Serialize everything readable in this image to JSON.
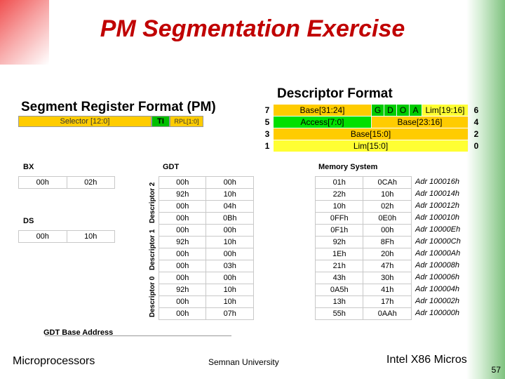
{
  "title": "PM Segmentation Exercise",
  "segment_register": {
    "heading": "Segment Register Format (PM)",
    "fields": [
      {
        "label": "Selector [12:0]",
        "color": "#ffcc00"
      },
      {
        "label": "TI",
        "color": "#00c000"
      },
      {
        "label": "RPL[1:0]",
        "color": "#ffcc00"
      }
    ]
  },
  "descriptor_format": {
    "heading": "Descriptor Format",
    "rows": [
      {
        "left": "7",
        "right": "6",
        "cells": [
          {
            "label": "Base[31:24]",
            "color": "#ffcc00"
          },
          {
            "label": "G",
            "color": "#00cc00"
          },
          {
            "label": "D",
            "color": "#00cc00"
          },
          {
            "label": "O",
            "color": "#00cc00"
          },
          {
            "label": "A",
            "color": "#00cc00"
          },
          {
            "label": "Lim[19:16]",
            "color": "#ffff33"
          }
        ]
      },
      {
        "left": "5",
        "right": "4",
        "cells": [
          {
            "label": "Access[7:0]",
            "color": "#00e000"
          },
          {
            "label": "Base[23:16]",
            "color": "#ffcc00"
          }
        ]
      },
      {
        "left": "3",
        "right": "2",
        "cells": [
          {
            "label": "Base[15:0]",
            "color": "#ffcc00"
          }
        ]
      },
      {
        "left": "1",
        "right": "0",
        "cells": [
          {
            "label": "Lim[15:0]",
            "color": "#ffff33"
          }
        ]
      }
    ]
  },
  "bx": {
    "label": "BX",
    "values": [
      "00h",
      "02h"
    ]
  },
  "ds": {
    "label": "DS",
    "values": [
      "00h",
      "10h"
    ]
  },
  "gdt": {
    "label": "GDT",
    "base_label": "GDT Base Address",
    "descriptor_labels": [
      "Descriptor 2",
      "Descriptor 1",
      "Descriptor 0"
    ],
    "rows": [
      [
        "00h",
        "00h"
      ],
      [
        "92h",
        "10h"
      ],
      [
        "00h",
        "04h"
      ],
      [
        "00h",
        "0Bh"
      ],
      [
        "00h",
        "00h"
      ],
      [
        "92h",
        "10h"
      ],
      [
        "00h",
        "00h"
      ],
      [
        "00h",
        "03h"
      ],
      [
        "00h",
        "00h"
      ],
      [
        "92h",
        "10h"
      ],
      [
        "00h",
        "10h"
      ],
      [
        "00h",
        "07h"
      ]
    ]
  },
  "memory": {
    "label": "Memory System",
    "rows": [
      {
        "a": "01h",
        "b": "0CAh",
        "addr": "Adr 100016h"
      },
      {
        "a": "22h",
        "b": "10h",
        "addr": "Adr 100014h"
      },
      {
        "a": "10h",
        "b": "02h",
        "addr": "Adr 100012h"
      },
      {
        "a": "0FFh",
        "b": "0E0h",
        "addr": "Adr 100010h"
      },
      {
        "a": "0F1h",
        "b": "00h",
        "addr": "Adr 10000Eh"
      },
      {
        "a": "92h",
        "b": "8Fh",
        "addr": "Adr 10000Ch"
      },
      {
        "a": "1Eh",
        "b": "20h",
        "addr": "Adr 10000Ah"
      },
      {
        "a": "21h",
        "b": "47h",
        "addr": "Adr 100008h"
      },
      {
        "a": "43h",
        "b": "30h",
        "addr": "Adr 100006h"
      },
      {
        "a": "0A5h",
        "b": "41h",
        "addr": "Adr 100004h"
      },
      {
        "a": "13h",
        "b": "17h",
        "addr": "Adr 100002h"
      },
      {
        "a": "55h",
        "b": "0AAh",
        "addr": "Adr 100000h"
      }
    ]
  },
  "footer": {
    "left": "Microprocessors",
    "center": "Semnan University",
    "right": "Intel X86 Micros",
    "page": "57"
  }
}
